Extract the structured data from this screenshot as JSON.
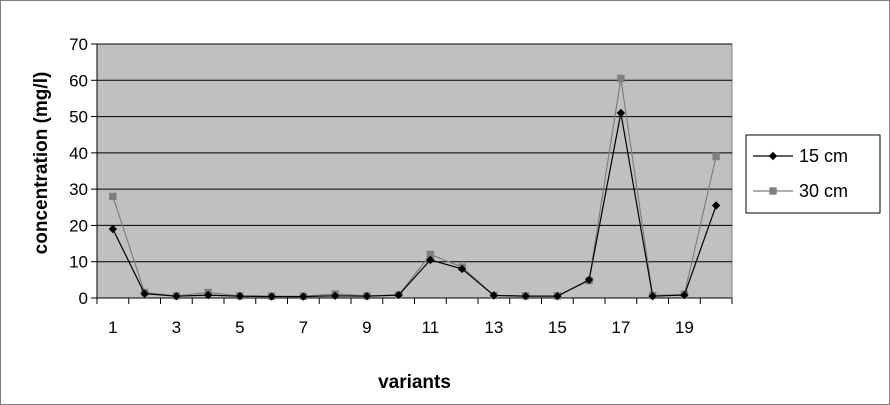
{
  "chart_data": {
    "type": "line",
    "title": "",
    "xlabel": "variants",
    "ylabel": "concentration (mg/l)",
    "x": [
      1,
      2,
      3,
      4,
      5,
      6,
      7,
      8,
      9,
      10,
      11,
      12,
      13,
      14,
      15,
      16,
      17,
      18,
      19,
      20
    ],
    "x_tick_labels": [
      "1",
      "3",
      "5",
      "7",
      "9",
      "11",
      "13",
      "15",
      "17",
      "19"
    ],
    "y_ticks": [
      "0",
      "10",
      "20",
      "30",
      "40",
      "50",
      "60",
      "70"
    ],
    "ylim": [
      0,
      70
    ],
    "grid": "horizontal",
    "legend_position": "right",
    "series": [
      {
        "name": "15 cm",
        "marker": "diamond",
        "color": "#000000",
        "values": [
          19,
          1.2,
          0.5,
          0.8,
          0.5,
          0.4,
          0.4,
          0.6,
          0.5,
          0.8,
          10.5,
          8,
          0.7,
          0.5,
          0.5,
          5,
          51,
          0.5,
          0.8,
          25.5
        ]
      },
      {
        "name": "30 cm",
        "marker": "square",
        "color": "#7f7f7f",
        "values": [
          28,
          1.5,
          0.6,
          1.5,
          0.6,
          0.5,
          0.5,
          1.1,
          0.6,
          0.8,
          12,
          8.5,
          0.7,
          0.6,
          0.6,
          4.8,
          60.5,
          0.7,
          1,
          39
        ]
      }
    ],
    "colors": {
      "plot_background": "#c0c0c0",
      "frame": "#808080"
    }
  }
}
